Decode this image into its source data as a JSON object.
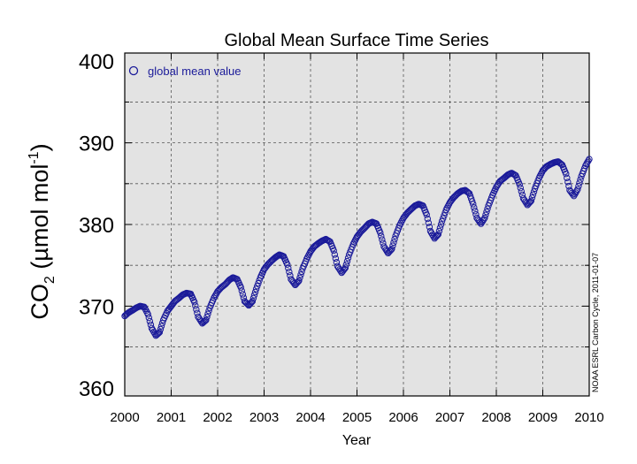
{
  "chart_data": {
    "type": "scatter",
    "title": "Global Mean Surface Time Series",
    "xlabel": "Year",
    "ylabel": {
      "main": "CO",
      "subscript": "2",
      "rest": " (µmol mol",
      "superscript": "-1",
      "close": ")"
    },
    "xlim": [
      2000,
      2010
    ],
    "ylim": [
      359,
      401
    ],
    "x_ticks": [
      2000,
      2001,
      2002,
      2003,
      2004,
      2005,
      2006,
      2007,
      2008,
      2009,
      2010
    ],
    "x_tick_labels": [
      "2000",
      "2001",
      "2002",
      "2003",
      "2004",
      "2005",
      "2006",
      "2007",
      "2008",
      "2009",
      "2010"
    ],
    "y_ticks": [
      360,
      370,
      380,
      390,
      400
    ],
    "y_tick_labels": [
      "360",
      "370",
      "380",
      "390",
      "400"
    ],
    "grid": true,
    "legend_position": "top-left",
    "credit": "NOAA ESRL Carbon Cycle, 2011-01-07",
    "colors": {
      "marker": "#1a1a99",
      "plot_bg": "#e3e3e3",
      "grid": "#555555"
    },
    "series": [
      {
        "name": "global mean value",
        "marker": "open-circle",
        "cycle_points": [
          [
            2000.0,
            368.8
          ],
          [
            2000.08,
            369.2
          ],
          [
            2000.17,
            369.5
          ],
          [
            2000.25,
            369.8
          ],
          [
            2000.33,
            370.0
          ],
          [
            2000.42,
            369.9
          ],
          [
            2000.5,
            369.0
          ],
          [
            2000.58,
            367.3
          ],
          [
            2000.67,
            366.4
          ],
          [
            2000.75,
            366.8
          ],
          [
            2000.83,
            368.3
          ],
          [
            2000.92,
            369.4
          ],
          [
            2001.0,
            370.0
          ],
          [
            2001.08,
            370.6
          ],
          [
            2001.17,
            371.0
          ],
          [
            2001.25,
            371.4
          ],
          [
            2001.33,
            371.6
          ],
          [
            2001.42,
            371.5
          ],
          [
            2001.5,
            370.5
          ],
          [
            2001.58,
            368.7
          ],
          [
            2001.67,
            367.9
          ],
          [
            2001.75,
            368.3
          ],
          [
            2001.83,
            369.8
          ],
          [
            2001.92,
            371.0
          ],
          [
            2002.0,
            371.8
          ],
          [
            2002.08,
            372.3
          ],
          [
            2002.17,
            372.7
          ],
          [
            2002.25,
            373.2
          ],
          [
            2002.33,
            373.5
          ],
          [
            2002.42,
            373.3
          ],
          [
            2002.5,
            372.3
          ],
          [
            2002.58,
            370.6
          ],
          [
            2002.67,
            370.1
          ],
          [
            2002.75,
            370.6
          ],
          [
            2002.83,
            372.1
          ],
          [
            2002.92,
            373.5
          ],
          [
            2003.0,
            374.5
          ],
          [
            2003.08,
            375.1
          ],
          [
            2003.17,
            375.6
          ],
          [
            2003.25,
            376.0
          ],
          [
            2003.33,
            376.3
          ],
          [
            2003.42,
            376.1
          ],
          [
            2003.5,
            375.1
          ],
          [
            2003.58,
            373.3
          ],
          [
            2003.67,
            372.6
          ],
          [
            2003.75,
            373.1
          ],
          [
            2003.83,
            374.6
          ],
          [
            2003.92,
            375.8
          ],
          [
            2004.0,
            376.7
          ],
          [
            2004.08,
            377.3
          ],
          [
            2004.17,
            377.7
          ],
          [
            2004.25,
            378.0
          ],
          [
            2004.33,
            378.2
          ],
          [
            2004.42,
            377.9
          ],
          [
            2004.5,
            376.8
          ],
          [
            2004.58,
            374.9
          ],
          [
            2004.67,
            374.1
          ],
          [
            2004.75,
            374.7
          ],
          [
            2004.83,
            376.3
          ],
          [
            2004.92,
            377.6
          ],
          [
            2005.0,
            378.5
          ],
          [
            2005.08,
            379.1
          ],
          [
            2005.17,
            379.6
          ],
          [
            2005.25,
            380.1
          ],
          [
            2005.33,
            380.3
          ],
          [
            2005.42,
            380.1
          ],
          [
            2005.5,
            379.0
          ],
          [
            2005.58,
            377.3
          ],
          [
            2005.67,
            376.5
          ],
          [
            2005.75,
            377.0
          ],
          [
            2005.83,
            378.6
          ],
          [
            2005.92,
            379.9
          ],
          [
            2006.0,
            380.8
          ],
          [
            2006.08,
            381.4
          ],
          [
            2006.17,
            381.9
          ],
          [
            2006.25,
            382.3
          ],
          [
            2006.33,
            382.5
          ],
          [
            2006.42,
            382.3
          ],
          [
            2006.5,
            381.2
          ],
          [
            2006.58,
            379.2
          ],
          [
            2006.67,
            378.3
          ],
          [
            2006.75,
            378.8
          ],
          [
            2006.83,
            380.4
          ],
          [
            2006.92,
            381.8
          ],
          [
            2007.0,
            382.7
          ],
          [
            2007.08,
            383.3
          ],
          [
            2007.17,
            383.8
          ],
          [
            2007.25,
            384.1
          ],
          [
            2007.33,
            384.2
          ],
          [
            2007.42,
            383.8
          ],
          [
            2007.5,
            382.5
          ],
          [
            2007.58,
            380.8
          ],
          [
            2007.67,
            380.1
          ],
          [
            2007.75,
            380.8
          ],
          [
            2007.83,
            382.3
          ],
          [
            2007.92,
            383.6
          ],
          [
            2008.0,
            384.6
          ],
          [
            2008.08,
            385.3
          ],
          [
            2008.17,
            385.7
          ],
          [
            2008.25,
            386.1
          ],
          [
            2008.33,
            386.3
          ],
          [
            2008.42,
            386.0
          ],
          [
            2008.5,
            384.9
          ],
          [
            2008.58,
            383.2
          ],
          [
            2008.67,
            382.4
          ],
          [
            2008.75,
            382.9
          ],
          [
            2008.83,
            384.4
          ],
          [
            2008.92,
            385.7
          ],
          [
            2009.0,
            386.6
          ],
          [
            2009.08,
            387.1
          ],
          [
            2009.17,
            387.4
          ],
          [
            2009.25,
            387.6
          ],
          [
            2009.33,
            387.7
          ],
          [
            2009.42,
            387.3
          ],
          [
            2009.5,
            386.2
          ],
          [
            2009.58,
            384.2
          ],
          [
            2009.67,
            383.5
          ],
          [
            2009.75,
            384.3
          ],
          [
            2009.83,
            385.9
          ],
          [
            2009.92,
            387.2
          ],
          [
            2010.0,
            388.0
          ]
        ]
      }
    ]
  }
}
